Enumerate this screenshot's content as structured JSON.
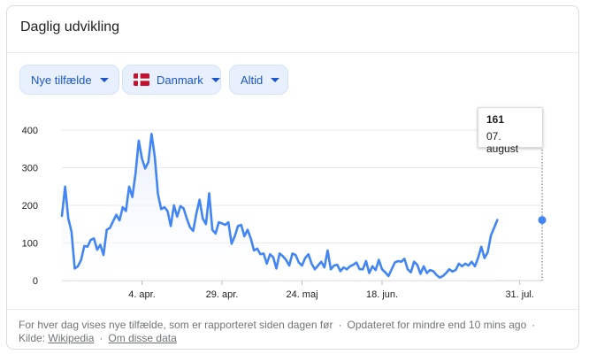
{
  "card": {
    "title": "Daglig udvikling"
  },
  "filters": {
    "metric_label": "Nye tilfælde",
    "country_label": "Danmark",
    "period_label": "Altid"
  },
  "colors": {
    "line": "#4285f4",
    "area_top": "#e8eefc",
    "chip_bg": "#e8f0fe",
    "chip_text": "#1a56c7",
    "flag_red": "#c8102e"
  },
  "icons": {
    "chip_dropdown": "caret-down-icon",
    "country_flag": "denmark-flag-icon"
  },
  "tooltip": {
    "value": "161",
    "date": "07. august"
  },
  "footer": {
    "note": "For hver dag vises nye tilfælde, som er rapporteret siden dagen før",
    "updated": "Opdateret for mindre end 10 mins ago",
    "source_prefix": "Kilde:",
    "source_link": "Wikipedia",
    "about_link": "Om disse data"
  },
  "chart_data": {
    "type": "area",
    "title": "",
    "xlabel": "",
    "ylabel": "",
    "ylim": [
      0,
      400
    ],
    "yticks": [
      0,
      100,
      200,
      300,
      400
    ],
    "x_start": "2020-03-10",
    "x_end": "2020-08-07",
    "xticks": [
      {
        "date": "2020-04-04",
        "label": "4. apr."
      },
      {
        "date": "2020-04-29",
        "label": "29. apr."
      },
      {
        "date": "2020-05-24",
        "label": "24. maj"
      },
      {
        "date": "2020-06-18",
        "label": "18. jun."
      },
      {
        "date": "2020-07-31",
        "label": "31. jul."
      }
    ],
    "highlight": {
      "date": "2020-08-07",
      "value": 161
    },
    "grid": "horizontal",
    "series": [
      {
        "values": [
          172,
          250,
          165,
          130,
          32,
          38,
          55,
          92,
          90,
          108,
          112,
          82,
          95,
          68,
          135,
          140,
          158,
          175,
          160,
          195,
          185,
          250,
          222,
          285,
          372,
          325,
          298,
          315,
          390,
          330,
          230,
          190,
          195,
          185,
          145,
          200,
          170,
          198,
          192,
          165,
          142,
          132,
          178,
          215,
          165,
          150,
          232,
          135,
          125,
          155,
          152,
          148,
          155,
          98,
          118,
          145,
          148,
          118,
          135,
          112,
          80,
          85,
          70,
          72,
          45,
          70,
          62,
          32,
          72,
          65,
          55,
          40,
          72,
          68,
          48,
          40,
          60,
          70,
          45,
          30,
          40,
          50,
          35,
          80,
          30,
          40,
          42,
          25,
          35,
          30,
          38,
          42,
          48,
          30,
          30,
          52,
          20,
          38,
          28,
          55,
          30,
          22,
          12,
          30,
          48,
          52,
          50,
          58,
          30,
          22,
          50,
          42,
          18,
          38,
          20,
          28,
          25,
          15,
          8,
          12,
          20,
          30,
          24,
          28,
          45,
          38,
          45,
          40,
          50,
          38,
          60,
          90,
          60,
          75,
          120,
          140,
          161
        ]
      }
    ]
  }
}
